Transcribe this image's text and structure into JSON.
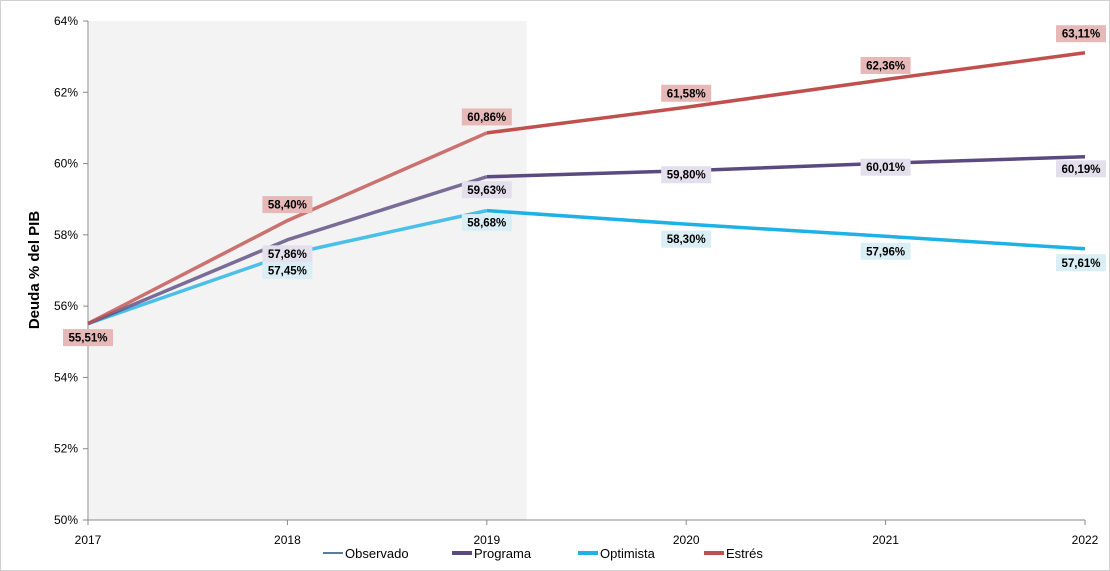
{
  "chart_data": {
    "type": "line",
    "title": "",
    "xlabel": "",
    "ylabel": "Deuda % del PIB",
    "x": [
      "2017",
      "2018",
      "2019",
      "2020",
      "2021",
      "2022"
    ],
    "ylim": [
      50,
      64
    ],
    "yticks": [
      50,
      52,
      54,
      56,
      58,
      60,
      62,
      64
    ],
    "ytick_labels": [
      "50%",
      "52%",
      "54%",
      "56%",
      "58%",
      "60%",
      "62%",
      "64%"
    ],
    "grid": false,
    "legend_position": "bottom",
    "shaded_region": {
      "x_start": "2017",
      "x_end": "2019.2",
      "color": "#f3f3f3"
    },
    "series": [
      {
        "name": "Observado",
        "color": "#5b7aa0",
        "values": [
          55.51,
          null,
          null,
          null,
          null,
          null
        ],
        "labels": []
      },
      {
        "name": "Programa",
        "color": "#5a4a80",
        "values": [
          55.51,
          57.86,
          59.63,
          59.8,
          60.01,
          60.19
        ],
        "labels": [
          "",
          "57,86%",
          "59,63%",
          "59,80%",
          "60,01%",
          "60,19%"
        ],
        "label_bg": "#e4dfec"
      },
      {
        "name": "Optimista",
        "color": "#1eb1e6",
        "values": [
          55.51,
          57.45,
          58.68,
          58.3,
          57.96,
          57.61
        ],
        "labels": [
          "",
          "57,45%",
          "58,68%",
          "58,30%",
          "57,96%",
          "57,61%"
        ],
        "label_bg": "#daeef5"
      },
      {
        "name": "Estrés",
        "color": "#c0504d",
        "values": [
          55.51,
          58.4,
          60.86,
          61.58,
          62.36,
          63.11
        ],
        "labels": [
          "55,51%",
          "58,40%",
          "60,86%",
          "61,58%",
          "62,36%",
          "63,11%"
        ],
        "label_bg": "#e6b9b8"
      }
    ]
  }
}
